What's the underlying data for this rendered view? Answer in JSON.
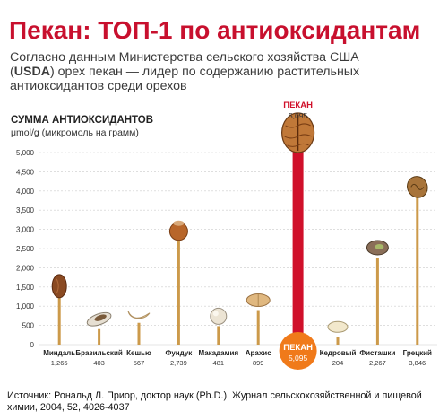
{
  "title": "Пекан: ТОП-1 по антиоксидантам",
  "subtitle": {
    "line1": "Согласно данным Министерства сельского хозяйства США",
    "open_paren": "(",
    "usda": "USDA",
    "line2_rest": ") орех пекан — лидер по содержанию растительных",
    "line3": "антиоксидантов среди орехов"
  },
  "source": "Источник: Рональд Л. Приор, доктор наук (Ph.D.). Журнал сельскохозяйственной и пищевой химии, 2004, 52, 4026-4037",
  "colors": {
    "title": "#c8102e",
    "bar": "#cc9a4a",
    "highlight_bar": "#d0102a",
    "highlight_circle": "#f07a1a",
    "grid": "#cccccc"
  },
  "chart_data": {
    "type": "bar",
    "ylabel": "СУММА АНТИОКСИДАНТОВ",
    "yunit": "μmol/g (микромоль на грамм)",
    "ylim": [
      0,
      5000
    ],
    "yticks": [
      "0",
      "500",
      "1,000",
      "1,500",
      "2,000",
      "2,500",
      "3,000",
      "3,500",
      "4,000",
      "4,500",
      "5,000"
    ],
    "ytick_values": [
      0,
      500,
      1000,
      1500,
      2000,
      2500,
      3000,
      3500,
      4000,
      4500,
      5000
    ],
    "grid": true,
    "highlight": {
      "label": "ПЕКАН",
      "value_text": "5,095",
      "index": 6
    },
    "categories": [
      "Миндаль",
      "Бразильский",
      "Кешью",
      "Фундук",
      "Макадамия",
      "Арахис",
      "ПЕКАН",
      "Кедровый",
      "Фисташки",
      "Грецкий"
    ],
    "values": [
      1265,
      403,
      567,
      2739,
      481,
      899,
      5095,
      204,
      2267,
      3846
    ],
    "value_labels": [
      "1,265",
      "403",
      "567",
      "2,739",
      "481",
      "899",
      "5,095",
      "204",
      "2,267",
      "3,846"
    ],
    "icons": [
      "almond-icon",
      "brazil-nut-icon",
      "cashew-icon",
      "hazelnut-icon",
      "macadamia-icon",
      "peanut-icon",
      "pecan-icon",
      "pine-nut-icon",
      "pistachio-icon",
      "walnut-icon"
    ]
  }
}
